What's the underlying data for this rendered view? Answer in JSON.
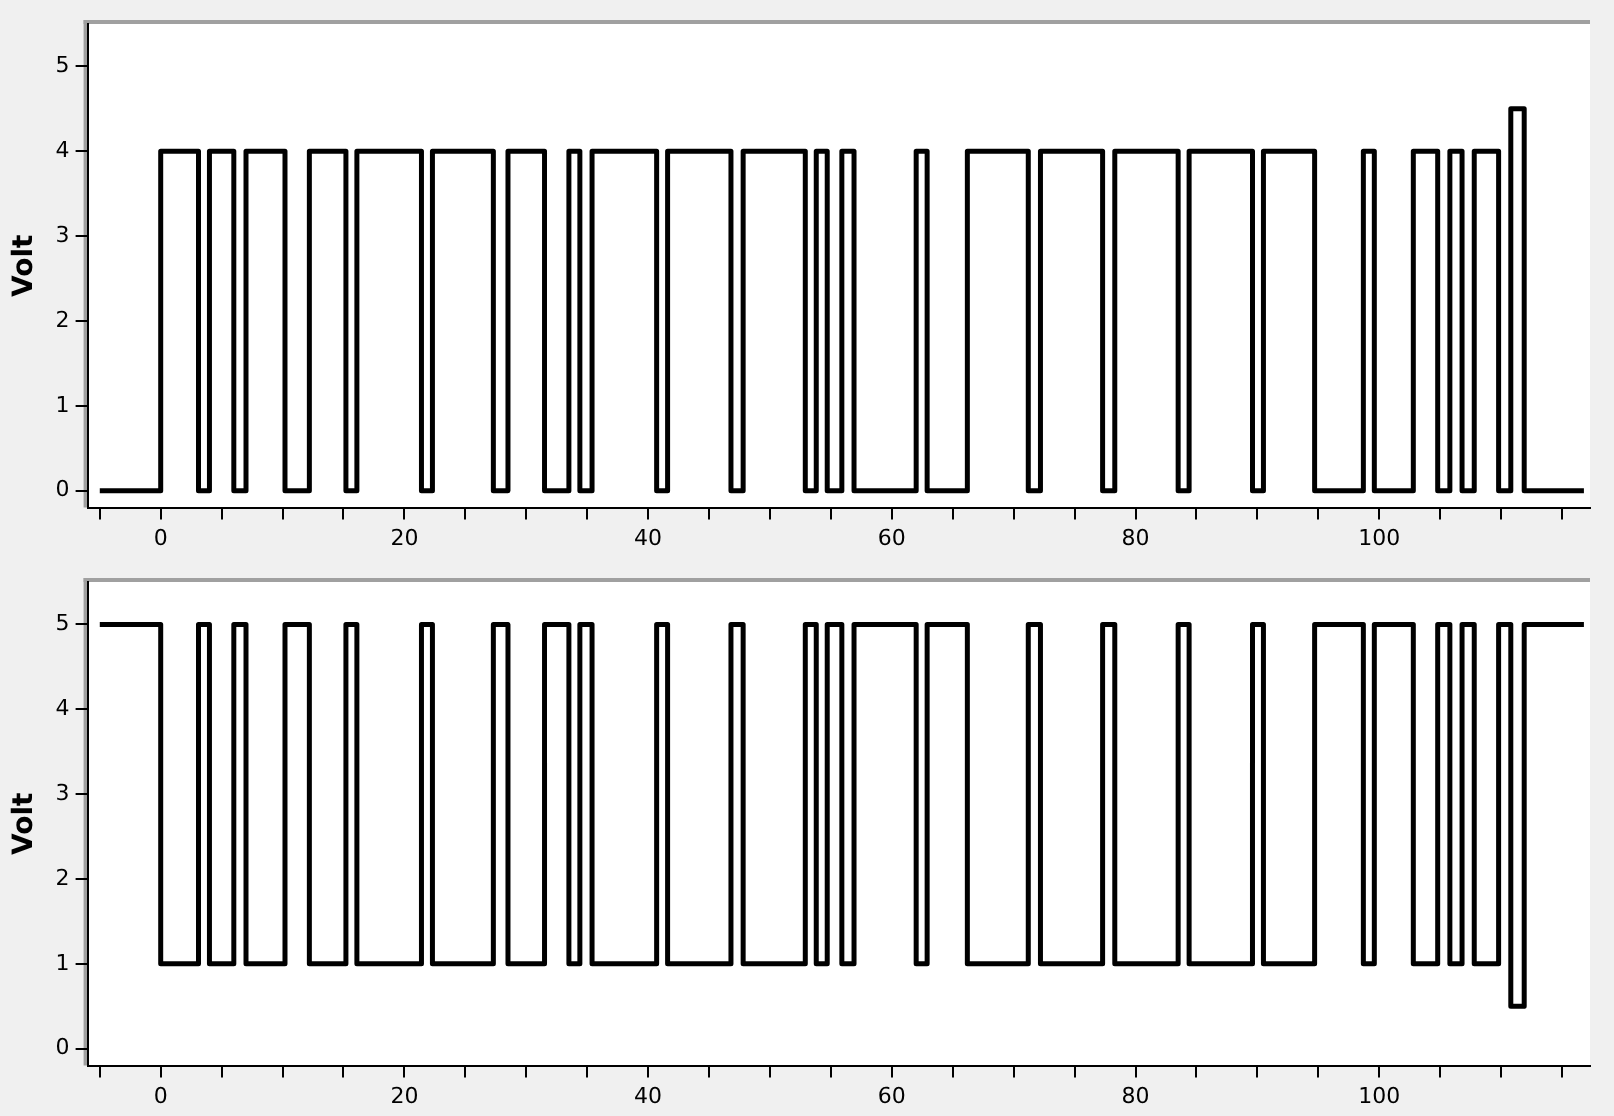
{
  "chart_data": [
    {
      "type": "step",
      "ylabel": "Volt",
      "grid": false,
      "marker": "none",
      "x": [
        -5,
        0,
        3.1,
        4,
        6,
        7,
        10.2,
        12.2,
        15.2,
        16.1,
        21.4,
        22.3,
        27.3,
        28.5,
        31.5,
        33.5,
        34.4,
        35.4,
        40.7,
        41.6,
        46.8,
        47.8,
        52.9,
        53.8,
        54.7,
        55.9,
        56.9,
        62,
        62.9,
        66.2,
        71.2,
        72.2,
        77.3,
        78.3,
        83.5,
        84.4,
        89.6,
        90.5,
        94.7,
        98.7,
        99.6,
        102.8,
        104.8,
        105.8,
        106.8,
        107.8,
        109.8,
        110.8,
        111.9,
        116.8
      ],
      "series": [
        {
          "color": "#000000",
          "values": [
            0,
            4,
            0,
            4,
            0,
            4,
            0,
            4,
            0,
            4,
            0,
            4,
            0,
            4,
            0,
            4,
            0,
            4,
            0,
            4,
            0,
            4,
            0,
            4,
            0,
            4,
            0,
            4,
            0,
            4,
            0,
            4,
            0,
            4,
            0,
            4,
            0,
            4,
            0,
            4,
            0,
            4,
            0,
            4,
            0,
            4,
            0,
            4.5,
            0,
            0
          ]
        }
      ],
      "xlim": [
        -6,
        117.3
      ],
      "xticks": [
        {
          "value": -5,
          "label": null
        },
        0,
        {
          "value": 5,
          "label": null
        },
        {
          "value": 10,
          "label": null
        },
        {
          "value": 15,
          "label": null
        },
        20,
        {
          "value": 25,
          "label": null
        },
        {
          "value": 30,
          "label": null
        },
        {
          "value": 35,
          "label": null
        },
        40,
        {
          "value": 45,
          "label": null
        },
        {
          "value": 50,
          "label": null
        },
        {
          "value": 55,
          "label": null
        },
        60,
        {
          "value": 65,
          "label": null
        },
        {
          "value": 70,
          "label": null
        },
        {
          "value": 75,
          "label": null
        },
        80,
        {
          "value": 85,
          "label": null
        },
        {
          "value": 90,
          "label": null
        },
        {
          "value": 95,
          "label": null
        },
        100,
        {
          "value": 105,
          "label": null
        },
        {
          "value": 110,
          "label": null
        },
        {
          "value": 115,
          "label": null
        }
      ],
      "ylim": [
        -0.2,
        5.5
      ],
      "yticks": [
        0,
        1,
        2,
        3,
        4,
        5
      ]
    },
    {
      "type": "step",
      "ylabel": "Volt",
      "grid": false,
      "marker": "none",
      "x": [
        -5,
        0,
        3.1,
        4,
        6,
        7,
        10.2,
        12.2,
        15.2,
        16.1,
        21.4,
        22.3,
        27.3,
        28.5,
        31.5,
        33.5,
        34.4,
        35.4,
        40.7,
        41.6,
        46.8,
        47.8,
        52.9,
        53.8,
        54.7,
        55.9,
        56.9,
        62,
        62.9,
        66.2,
        71.2,
        72.2,
        77.3,
        78.3,
        83.5,
        84.4,
        89.6,
        90.5,
        94.7,
        98.7,
        99.6,
        102.8,
        104.8,
        105.8,
        106.8,
        107.8,
        109.8,
        110.8,
        111.9,
        116.8
      ],
      "series": [
        {
          "color": "#000000",
          "values": [
            5,
            1,
            5,
            1,
            5,
            1,
            5,
            1,
            5,
            1,
            5,
            1,
            5,
            1,
            5,
            1,
            5,
            1,
            5,
            1,
            5,
            1,
            5,
            1,
            5,
            1,
            5,
            1,
            5,
            1,
            5,
            1,
            5,
            1,
            5,
            1,
            5,
            1,
            5,
            1,
            5,
            1,
            5,
            1,
            5,
            1,
            5,
            0.5,
            5,
            5
          ]
        }
      ],
      "xlim": [
        -6,
        117.3
      ],
      "xticks": [
        {
          "value": -5,
          "label": null
        },
        0,
        {
          "value": 5,
          "label": null
        },
        {
          "value": 10,
          "label": null
        },
        {
          "value": 15,
          "label": null
        },
        20,
        {
          "value": 25,
          "label": null
        },
        {
          "value": 30,
          "label": null
        },
        {
          "value": 35,
          "label": null
        },
        40,
        {
          "value": 45,
          "label": null
        },
        {
          "value": 50,
          "label": null
        },
        {
          "value": 55,
          "label": null
        },
        60,
        {
          "value": 65,
          "label": null
        },
        {
          "value": 70,
          "label": null
        },
        {
          "value": 75,
          "label": null
        },
        80,
        {
          "value": 85,
          "label": null
        },
        {
          "value": 90,
          "label": null
        },
        {
          "value": 95,
          "label": null
        },
        100,
        {
          "value": 105,
          "label": null
        },
        {
          "value": 110,
          "label": null
        },
        {
          "value": 115,
          "label": null
        }
      ],
      "ylim": [
        -0.2,
        5.5
      ],
      "yticks": [
        0,
        1,
        2,
        3,
        4,
        5
      ]
    }
  ]
}
